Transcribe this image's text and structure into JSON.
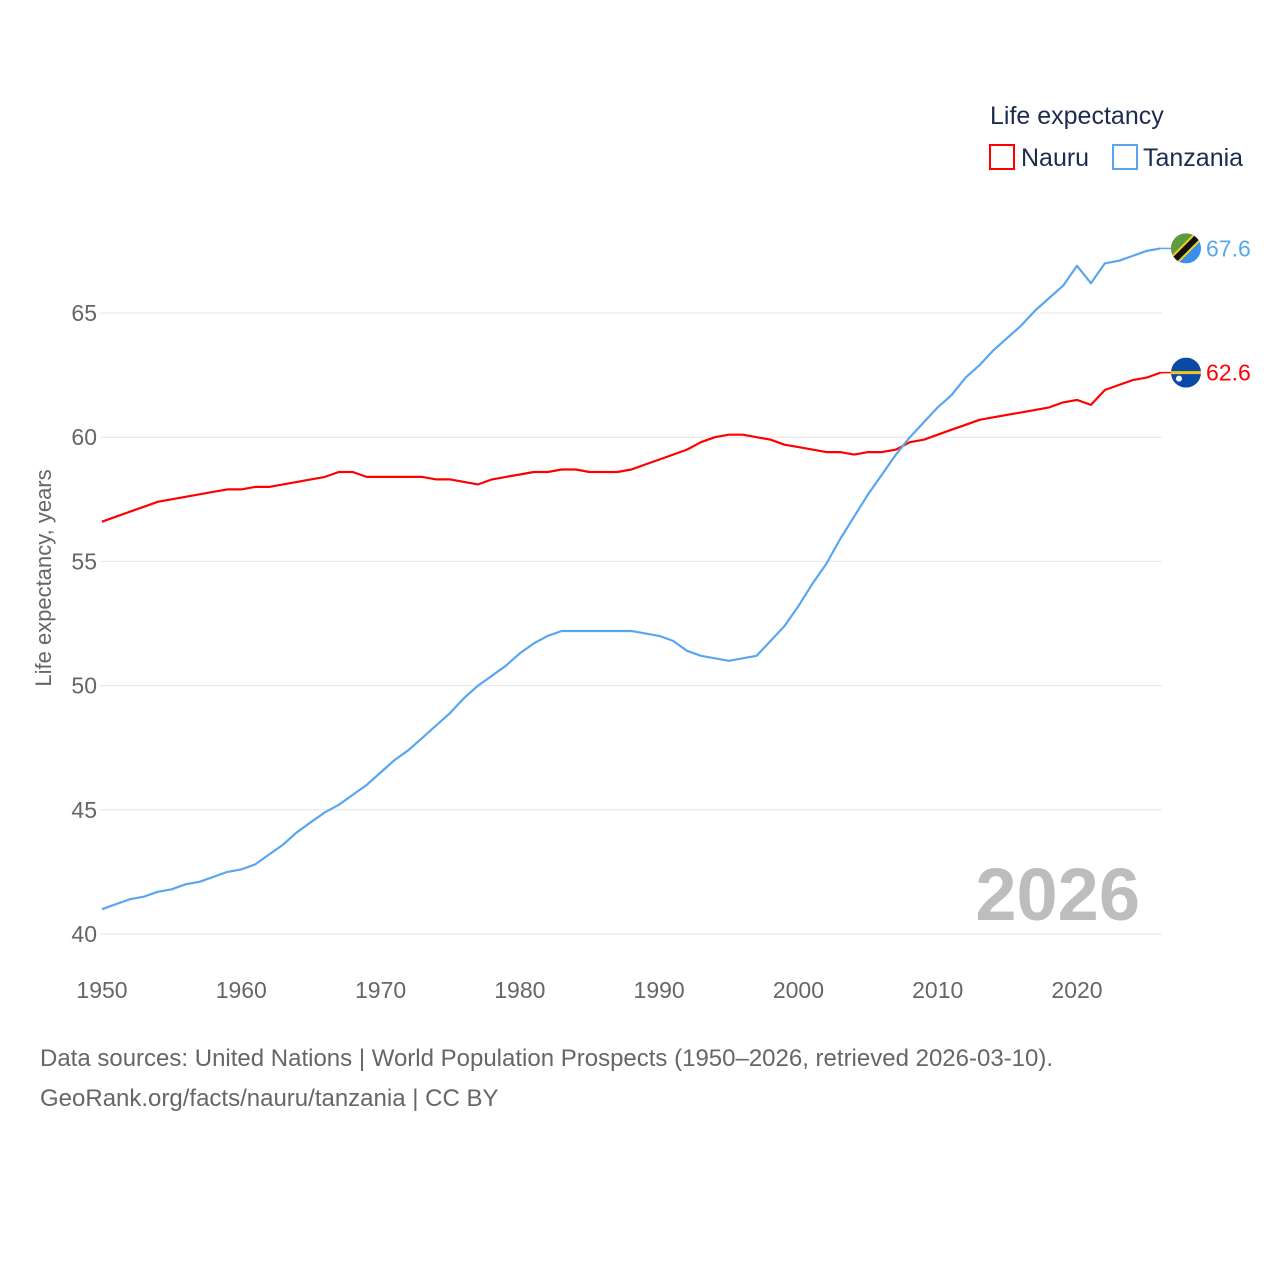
{
  "chart_data": {
    "type": "line",
    "legend_title": "Life expectancy",
    "legend_position": "top-right",
    "ylabel": "Life expectancy, years",
    "xlabel": "",
    "xlim": [
      1950,
      2026
    ],
    "ylim": [
      40,
      68
    ],
    "x_ticks": [
      1950,
      1960,
      1970,
      1980,
      1990,
      2000,
      2010,
      2020
    ],
    "y_ticks": [
      40,
      45,
      50,
      55,
      60,
      65
    ],
    "grid": true,
    "year_watermark": "2026",
    "x_start": 1950,
    "series": [
      {
        "name": "Nauru",
        "color": "#ff0000",
        "end_label": "62.6",
        "values": [
          56.6,
          56.8,
          57.0,
          57.2,
          57.4,
          57.5,
          57.6,
          57.7,
          57.8,
          57.9,
          57.9,
          58.0,
          58.0,
          58.1,
          58.2,
          58.3,
          58.4,
          58.6,
          58.6,
          58.4,
          58.4,
          58.4,
          58.4,
          58.4,
          58.3,
          58.3,
          58.2,
          58.1,
          58.3,
          58.4,
          58.5,
          58.6,
          58.6,
          58.7,
          58.7,
          58.6,
          58.6,
          58.6,
          58.7,
          58.9,
          59.1,
          59.3,
          59.5,
          59.8,
          60.0,
          60.1,
          60.1,
          60.0,
          59.9,
          59.7,
          59.6,
          59.5,
          59.4,
          59.4,
          59.3,
          59.4,
          59.4,
          59.5,
          59.8,
          59.9,
          60.1,
          60.3,
          60.5,
          60.7,
          60.8,
          60.9,
          61.0,
          61.1,
          61.2,
          61.4,
          61.5,
          61.3,
          61.9,
          62.1,
          62.3,
          62.4,
          62.6
        ]
      },
      {
        "name": "Tanzania",
        "color": "#5aa6ee",
        "end_label": "67.6",
        "values": [
          41.0,
          41.2,
          41.4,
          41.5,
          41.7,
          41.8,
          42.0,
          42.1,
          42.3,
          42.5,
          42.6,
          42.8,
          43.2,
          43.6,
          44.1,
          44.5,
          44.9,
          45.2,
          45.6,
          46.0,
          46.5,
          47.0,
          47.4,
          47.9,
          48.4,
          48.9,
          49.5,
          50.0,
          50.4,
          50.8,
          51.3,
          51.7,
          52.0,
          52.2,
          52.2,
          52.2,
          52.2,
          52.2,
          52.2,
          52.1,
          52.0,
          51.8,
          51.4,
          51.2,
          51.1,
          51.0,
          51.1,
          51.2,
          51.8,
          52.4,
          53.2,
          54.1,
          54.9,
          55.9,
          56.8,
          57.7,
          58.5,
          59.3,
          60.0,
          60.6,
          61.2,
          61.7,
          62.4,
          62.9,
          63.5,
          64.0,
          64.5,
          65.1,
          65.6,
          66.1,
          66.9,
          66.2,
          67.0,
          67.1,
          67.3,
          67.5,
          67.6
        ]
      }
    ]
  },
  "footer": {
    "sources": "Data sources: United Nations | World Population Prospects (1950–2026, retrieved 2026-03-10).",
    "credit": "GeoRank.org/facts/nauru/tanzania | CC BY"
  }
}
